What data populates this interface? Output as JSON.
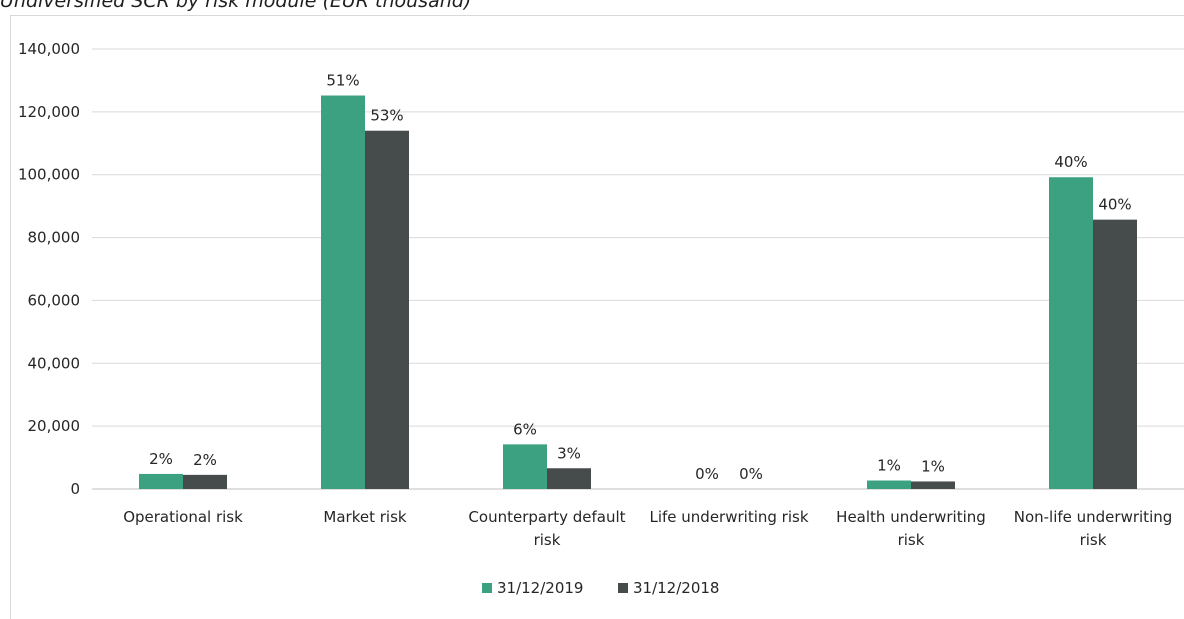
{
  "chart_data": {
    "type": "bar",
    "title": "Undiversified SCR by risk module (EUR thousand)",
    "categories": [
      [
        "Operational risk"
      ],
      [
        "Market risk"
      ],
      [
        "Counterparty default",
        "risk"
      ],
      [
        "Life underwriting risk"
      ],
      [
        "Health underwriting",
        "risk"
      ],
      [
        "Non-life underwriting",
        "risk"
      ]
    ],
    "series": [
      {
        "name": "31/12/2019",
        "color": "#3ca180",
        "values": [
          4800,
          125200,
          14200,
          0,
          2700,
          99200
        ],
        "labels": [
          "2%",
          "51%",
          "6%",
          "0%",
          "1%",
          "40%"
        ]
      },
      {
        "name": "31/12/2018",
        "color": "#464b4b",
        "values": [
          4500,
          114000,
          6600,
          0,
          2400,
          85700
        ],
        "labels": [
          "2%",
          "53%",
          "3%",
          "0%",
          "1%",
          "40%"
        ]
      }
    ],
    "ylim": [
      0,
      140000
    ],
    "yticks": [
      0,
      20000,
      40000,
      60000,
      80000,
      100000,
      120000,
      140000
    ],
    "ytick_labels": [
      "0",
      "20,000",
      "40,000",
      "60,000",
      "80,000",
      "100,000",
      "120,000",
      "140,000"
    ],
    "grid": true,
    "legend_position": "bottom"
  }
}
